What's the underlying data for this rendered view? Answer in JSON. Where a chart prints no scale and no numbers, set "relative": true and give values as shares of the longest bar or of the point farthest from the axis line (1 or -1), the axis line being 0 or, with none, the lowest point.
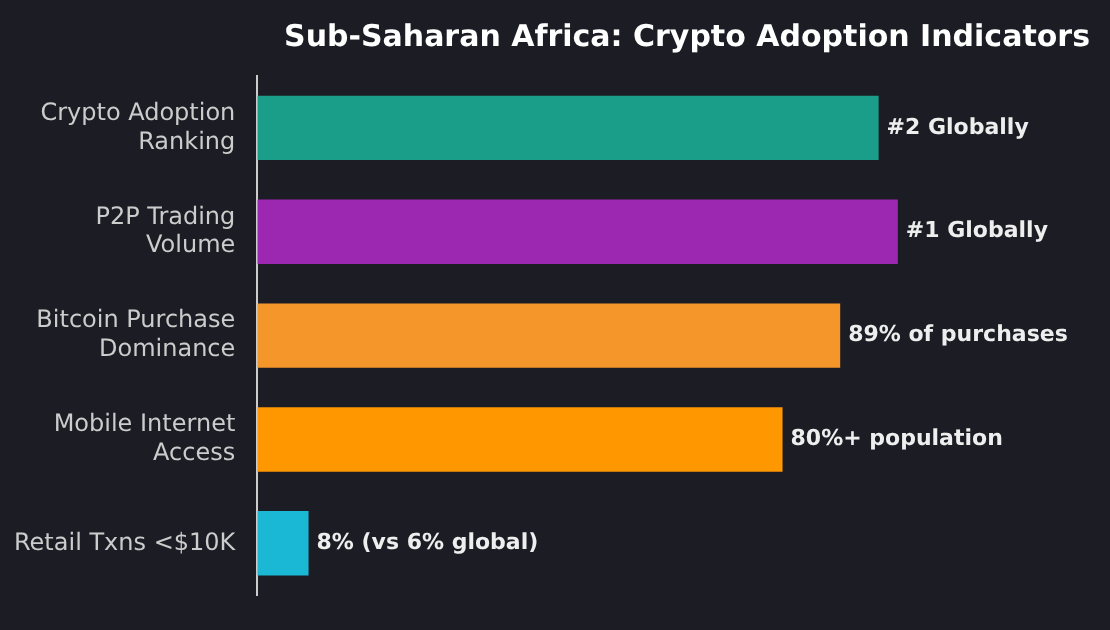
{
  "chart_data": {
    "type": "bar",
    "orientation": "horizontal",
    "relative": true,
    "title": "Sub-Saharan Africa: Crypto Adoption Indicators",
    "categories": [
      "Crypto Adoption Ranking",
      "P2P Trading Volume",
      "Bitcoin Purchase Dominance",
      "Mobile Internet Access",
      "Retail Txns <$10K"
    ],
    "values": [
      0.97,
      1,
      0.91,
      0.82,
      0.08
    ],
    "colors": [
      "#1a9e8a",
      "#9c27b0",
      "#f5962a",
      "#ff9800",
      "#1ab8d4"
    ],
    "annotations": [
      {
        "text": "#2 Globally",
        "x": 0.97,
        "y": "Crypto Adoption Ranking"
      },
      {
        "text": "#1 Globally",
        "x": 1,
        "y": "P2P Trading Volume"
      },
      {
        "text": "89% of purchases",
        "x": 0.91,
        "y": "Bitcoin Purchase Dominance"
      },
      {
        "text": "80%+ population",
        "x": 0.82,
        "y": "Mobile Internet Access"
      },
      {
        "text": "8% (vs 6% global)",
        "x": 0.08,
        "y": "Retail Txns <$10K"
      }
    ],
    "legend": false
  }
}
